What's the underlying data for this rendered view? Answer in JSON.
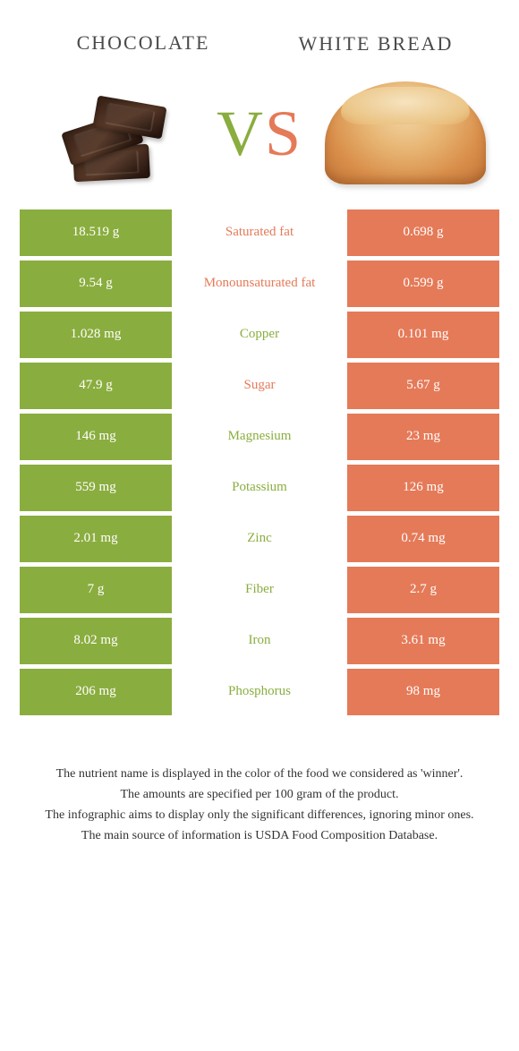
{
  "header": {
    "left": "Chocolate",
    "right": "White Bread"
  },
  "vs": {
    "v": "V",
    "s": "S"
  },
  "colors": {
    "left": "#8aad3f",
    "right": "#e57a58",
    "text": "#4a4a4a",
    "background": "#ffffff"
  },
  "table": {
    "rows": [
      {
        "left": "18.519 g",
        "nutrient": "Saturated fat",
        "right": "0.698 g",
        "winner": "right"
      },
      {
        "left": "9.54 g",
        "nutrient": "Monounsaturated fat",
        "right": "0.599 g",
        "winner": "right"
      },
      {
        "left": "1.028 mg",
        "nutrient": "Copper",
        "right": "0.101 mg",
        "winner": "left"
      },
      {
        "left": "47.9 g",
        "nutrient": "Sugar",
        "right": "5.67 g",
        "winner": "right"
      },
      {
        "left": "146 mg",
        "nutrient": "Magnesium",
        "right": "23 mg",
        "winner": "left"
      },
      {
        "left": "559 mg",
        "nutrient": "Potassium",
        "right": "126 mg",
        "winner": "left"
      },
      {
        "left": "2.01 mg",
        "nutrient": "Zinc",
        "right": "0.74 mg",
        "winner": "left"
      },
      {
        "left": "7 g",
        "nutrient": "Fiber",
        "right": "2.7 g",
        "winner": "left"
      },
      {
        "left": "8.02 mg",
        "nutrient": "Iron",
        "right": "3.61 mg",
        "winner": "left"
      },
      {
        "left": "206 mg",
        "nutrient": "Phosphorus",
        "right": "98 mg",
        "winner": "left"
      }
    ]
  },
  "footnotes": [
    "The nutrient name is displayed in the color of the food we considered as 'winner'.",
    "The amounts are specified per 100 gram of the product.",
    "The infographic aims to display only the significant differences, ignoring minor ones.",
    "The main source of information is USDA Food Composition Database."
  ]
}
